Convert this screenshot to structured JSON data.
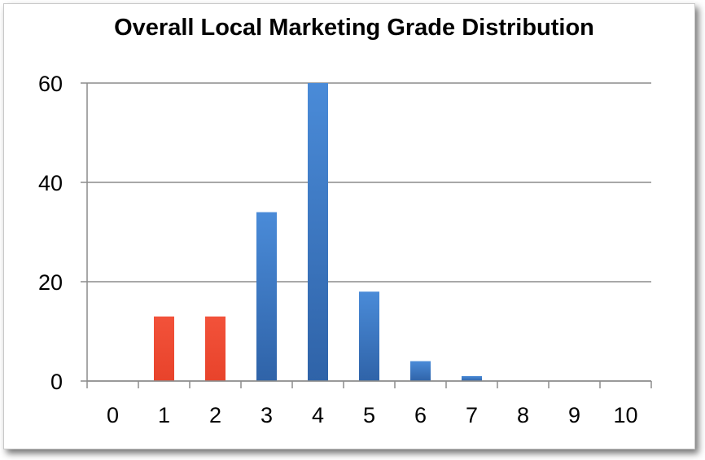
{
  "chart_data": {
    "type": "bar",
    "title": "Overall Local Marketing Grade Distribution",
    "xlabel": "",
    "ylabel": "",
    "categories": [
      "0",
      "1",
      "2",
      "3",
      "4",
      "5",
      "6",
      "7",
      "8",
      "9",
      "10"
    ],
    "values": [
      0,
      13,
      13,
      34,
      60,
      18,
      4,
      1,
      0,
      0,
      0
    ],
    "bar_colors": [
      "#ef4a30",
      "#ef4a30",
      "#ef4a30",
      "#3e7cc9",
      "#3e7cc9",
      "#3e7cc9",
      "#3e7cc9",
      "#3e7cc9",
      "#3e7cc9",
      "#3e7cc9",
      "#3e7cc9"
    ],
    "ylim": [
      0,
      60
    ],
    "yticks": [
      0,
      20,
      40,
      60
    ],
    "grid": true,
    "legend": "none"
  },
  "colors": {
    "low_grade_bar": "#ef4a30",
    "high_grade_bar": "#3e7cc9",
    "gridline": "#8c8c8c"
  }
}
